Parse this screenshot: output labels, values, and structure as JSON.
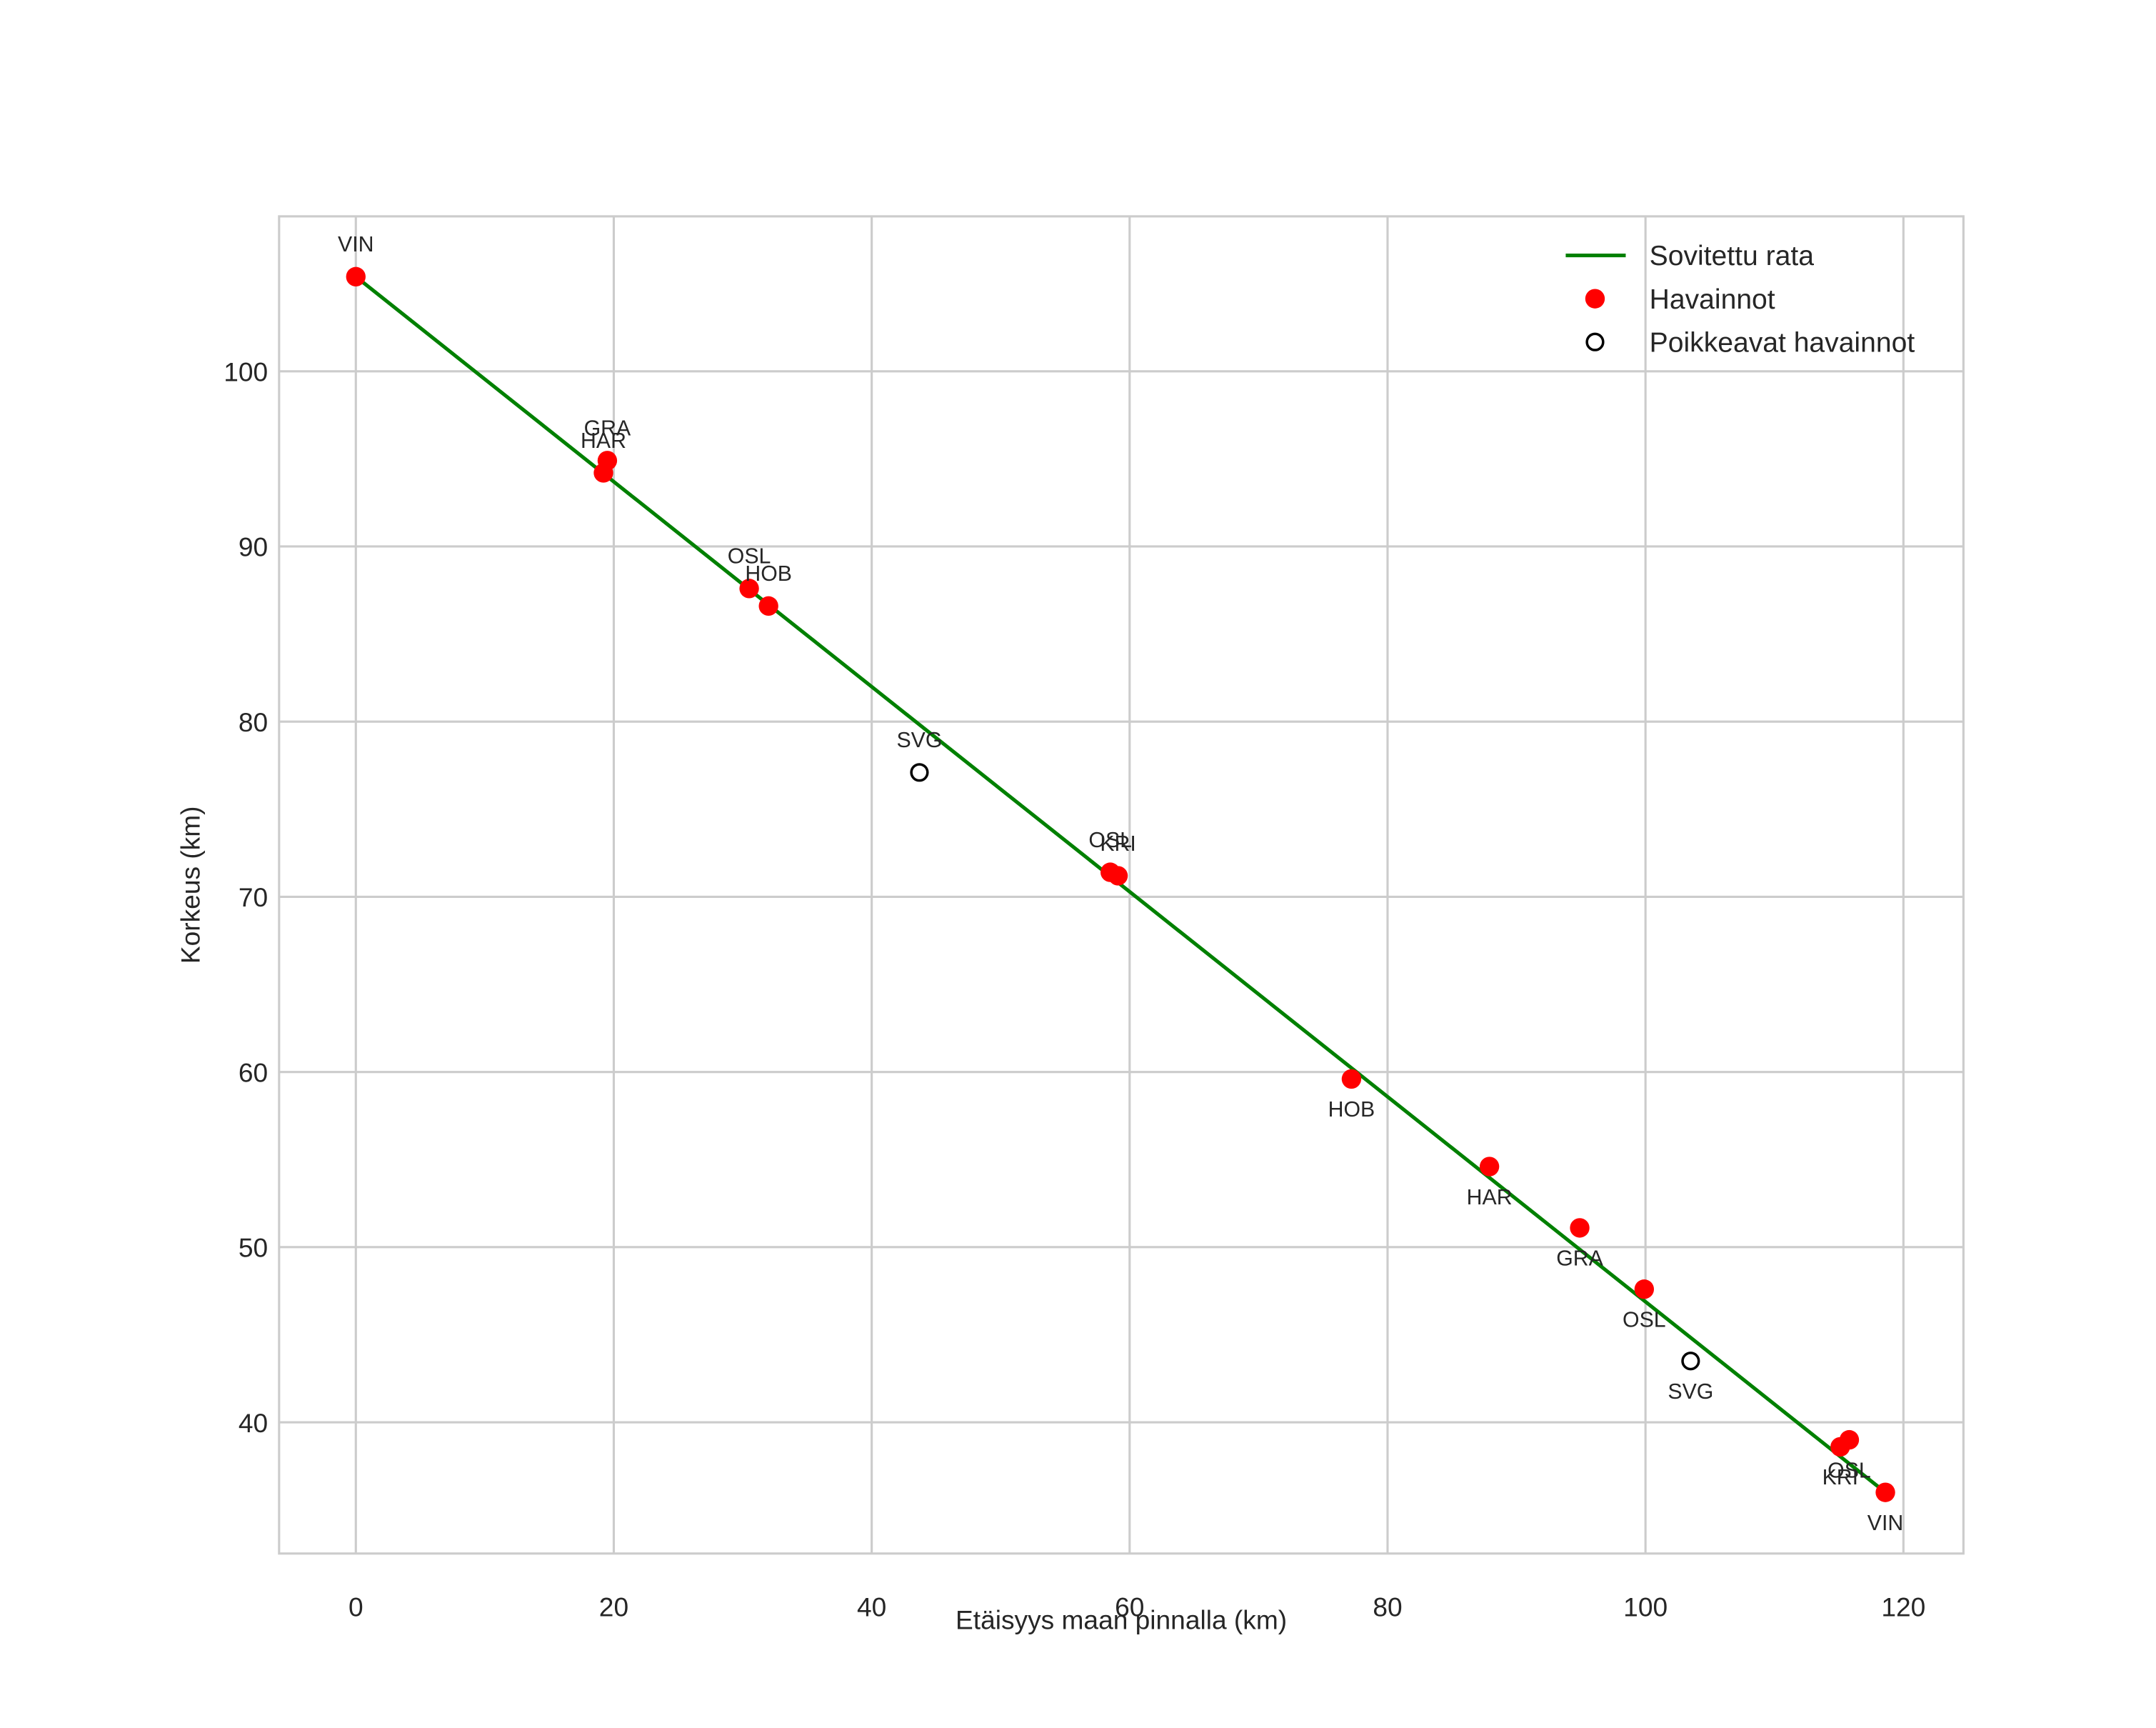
{
  "chart_data": {
    "type": "scatter",
    "title": "",
    "xlabel": "Etäisyys maan pinnalla (km)",
    "ylabel": "Korkeus (km)",
    "xlim": [
      -6,
      124.5
    ],
    "ylim": [
      32.5,
      108.9
    ],
    "xticks": [
      0,
      20,
      40,
      60,
      80,
      100,
      120
    ],
    "yticks": [
      40,
      50,
      60,
      70,
      80,
      90,
      100
    ],
    "grid": true,
    "legend_position": "upper right",
    "legend": [
      "Sovitettu rata",
      "Havainnot",
      "Poikkeavat havainnot"
    ],
    "series": [
      {
        "name": "Sovitettu rata",
        "type": "line",
        "color": "#008000",
        "x": [
          0,
          118.6
        ],
        "y": [
          105.4,
          36.0
        ]
      },
      {
        "name": "Havainnot",
        "type": "scatter",
        "color": "#ff0000",
        "points": [
          {
            "x": 0,
            "y": 105.4,
            "label": "VIN",
            "label_pos": "above"
          },
          {
            "x": 19.5,
            "y": 94.9,
            "label": "GRA",
            "label_pos": "above"
          },
          {
            "x": 19.2,
            "y": 94.2,
            "label": "HAR",
            "label_pos": "above"
          },
          {
            "x": 30.5,
            "y": 87.6,
            "label": "OSL",
            "label_pos": "above"
          },
          {
            "x": 32.0,
            "y": 86.6,
            "label": "HOB",
            "label_pos": "above"
          },
          {
            "x": 58.5,
            "y": 71.4,
            "label": "OSL",
            "label_pos": "above"
          },
          {
            "x": 59.1,
            "y": 71.2,
            "label": "KRI",
            "label_pos": "above"
          },
          {
            "x": 77.2,
            "y": 59.6,
            "label": "HOB",
            "label_pos": "below"
          },
          {
            "x": 87.9,
            "y": 54.6,
            "label": "HAR",
            "label_pos": "below"
          },
          {
            "x": 94.9,
            "y": 51.1,
            "label": "GRA",
            "label_pos": "below"
          },
          {
            "x": 99.9,
            "y": 47.6,
            "label": "OSL",
            "label_pos": "below"
          },
          {
            "x": 115.1,
            "y": 38.6,
            "label": "KRI",
            "label_pos": "below"
          },
          {
            "x": 115.8,
            "y": 39.0,
            "label": "OSL",
            "label_pos": "below"
          },
          {
            "x": 118.6,
            "y": 36.0,
            "label": "VIN",
            "label_pos": "below"
          }
        ]
      },
      {
        "name": "Poikkeavat havainnot",
        "type": "scatter",
        "marker": "open-circle",
        "color": "#000000",
        "points": [
          {
            "x": 43.7,
            "y": 77.1,
            "label": "SVG",
            "label_pos": "above"
          },
          {
            "x": 103.5,
            "y": 43.5,
            "label": "SVG",
            "label_pos": "below"
          }
        ]
      }
    ]
  }
}
